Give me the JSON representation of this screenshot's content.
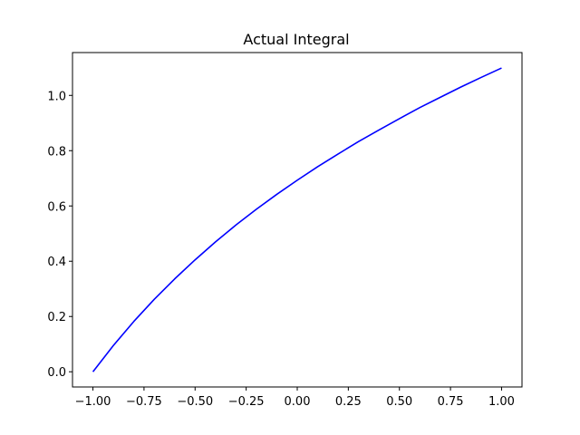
{
  "chart_data": {
    "type": "line",
    "title": "Actual Integral",
    "xlabel": "",
    "ylabel": "",
    "xlim": [
      -1.1,
      1.1
    ],
    "ylim": [
      -0.055,
      1.155
    ],
    "grid": false,
    "x_ticks": [
      -1.0,
      -0.75,
      -0.5,
      -0.25,
      0.0,
      0.25,
      0.5,
      0.75,
      1.0
    ],
    "x_tick_labels": [
      "−1.00",
      "−0.75",
      "−0.50",
      "−0.25",
      "0.00",
      "0.25",
      "0.50",
      "0.75",
      "1.00"
    ],
    "y_ticks": [
      0.0,
      0.2,
      0.4,
      0.6,
      0.8,
      1.0
    ],
    "y_tick_labels": [
      "0.0",
      "0.2",
      "0.4",
      "0.6",
      "0.8",
      "1.0"
    ],
    "series": [
      {
        "color": "#0000ff",
        "x": [
          -1.0,
          -0.9,
          -0.8,
          -0.7,
          -0.6,
          -0.5,
          -0.4,
          -0.3,
          -0.2,
          -0.1,
          0.0,
          0.1,
          0.2,
          0.3,
          0.4,
          0.5,
          0.6,
          0.7,
          0.8,
          0.9,
          1.0
        ],
        "y": [
          0.0,
          0.095,
          0.182,
          0.262,
          0.336,
          0.405,
          0.47,
          0.531,
          0.588,
          0.642,
          0.693,
          0.742,
          0.788,
          0.833,
          0.875,
          0.916,
          0.956,
          0.993,
          1.03,
          1.065,
          1.099
        ]
      }
    ]
  }
}
